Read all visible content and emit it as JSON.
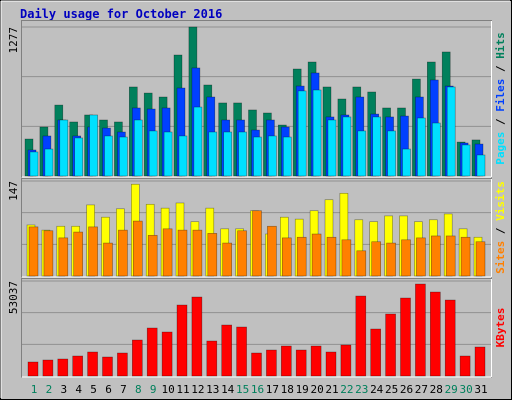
{
  "chart_data": [
    {
      "type": "bar",
      "title": "Daily usage for October 2016",
      "legend_separator": " / ",
      "ylim": [
        0,
        1277
      ],
      "yticks": [
        1277
      ],
      "series": [
        {
          "name": "Hits",
          "color": "#00805c",
          "values": [
            317,
            420,
            608,
            463,
            523,
            480,
            463,
            763,
            711,
            677,
            1037,
            1277,
            780,
            626,
            626,
            566,
            540,
            437,
            917,
            977,
            763,
            660,
            763,
            720,
            583,
            583,
            831,
            977,
            1063,
            291,
            309
          ]
        },
        {
          "name": "Files",
          "color": "#0040ff",
          "values": [
            223,
            343,
            480,
            343,
            420,
            411,
            377,
            583,
            574,
            583,
            754,
            926,
            677,
            480,
            480,
            394,
            480,
            420,
            771,
            883,
            506,
            523,
            677,
            531,
            506,
            514,
            677,
            823,
            771,
            283,
            274
          ]
        },
        {
          "name": "Pages",
          "color": "#00e0ff",
          "values": [
            206,
            231,
            480,
            326,
            523,
            343,
            334,
            480,
            386,
            377,
            343,
            591,
            377,
            377,
            377,
            334,
            343,
            334,
            729,
            737,
            480,
            506,
            386,
            506,
            386,
            231,
            497,
            454,
            763,
            266,
            180
          ]
        }
      ]
    },
    {
      "type": "bar",
      "legend_separator": " / ",
      "ylim": [
        0,
        147
      ],
      "yticks": [
        147
      ],
      "series": [
        {
          "name": "Visits",
          "color": "#ffff00",
          "values": [
            79,
            71,
            77,
            77,
            110,
            91,
            104,
            142,
            111,
            105,
            113,
            84,
            105,
            73,
            73,
            101,
            65,
            91,
            88,
            101,
            118,
            128,
            87,
            84,
            93,
            93,
            84,
            87,
            96,
            73,
            60
          ]
        },
        {
          "name": "Sites",
          "color": "#ff8000",
          "values": [
            76,
            70,
            59,
            68,
            76,
            51,
            71,
            85,
            63,
            73,
            71,
            71,
            66,
            51,
            70,
            101,
            77,
            59,
            60,
            65,
            60,
            56,
            39,
            53,
            51,
            56,
            59,
            62,
            62,
            60,
            53
          ]
        }
      ]
    },
    {
      "type": "bar",
      "ylim": [
        0,
        53037
      ],
      "yticks": [
        53037
      ],
      "series": [
        {
          "name": "KBytes",
          "color": "#ff0000",
          "values": [
            7813,
            8930,
            9490,
            11163,
            13395,
            10605,
            12838,
            20093,
            26790,
            24558,
            39628,
            44093,
            19535,
            28465,
            27349,
            12838,
            14512,
            16744,
            14512,
            16744,
            13395,
            17302,
            44651,
            26233,
            34604,
            43535,
            51348,
            46884,
            42419,
            11163,
            16186
          ]
        }
      ],
      "categories": [
        "1",
        "2",
        "3",
        "4",
        "5",
        "6",
        "7",
        "8",
        "9",
        "10",
        "11",
        "12",
        "13",
        "14",
        "15",
        "16",
        "17",
        "18",
        "19",
        "20",
        "21",
        "22",
        "23",
        "24",
        "25",
        "26",
        "27",
        "28",
        "29",
        "30",
        "31"
      ],
      "category_colors": [
        "#00805c",
        "#00805c",
        "#000000",
        "#000000",
        "#000000",
        "#000000",
        "#000000",
        "#00805c",
        "#00805c",
        "#000000",
        "#000000",
        "#000000",
        "#000000",
        "#000000",
        "#00805c",
        "#00805c",
        "#000000",
        "#000000",
        "#000000",
        "#000000",
        "#000000",
        "#00805c",
        "#00805c",
        "#000000",
        "#000000",
        "#000000",
        "#000000",
        "#000000",
        "#00805c",
        "#00805c",
        "#000000"
      ]
    }
  ]
}
